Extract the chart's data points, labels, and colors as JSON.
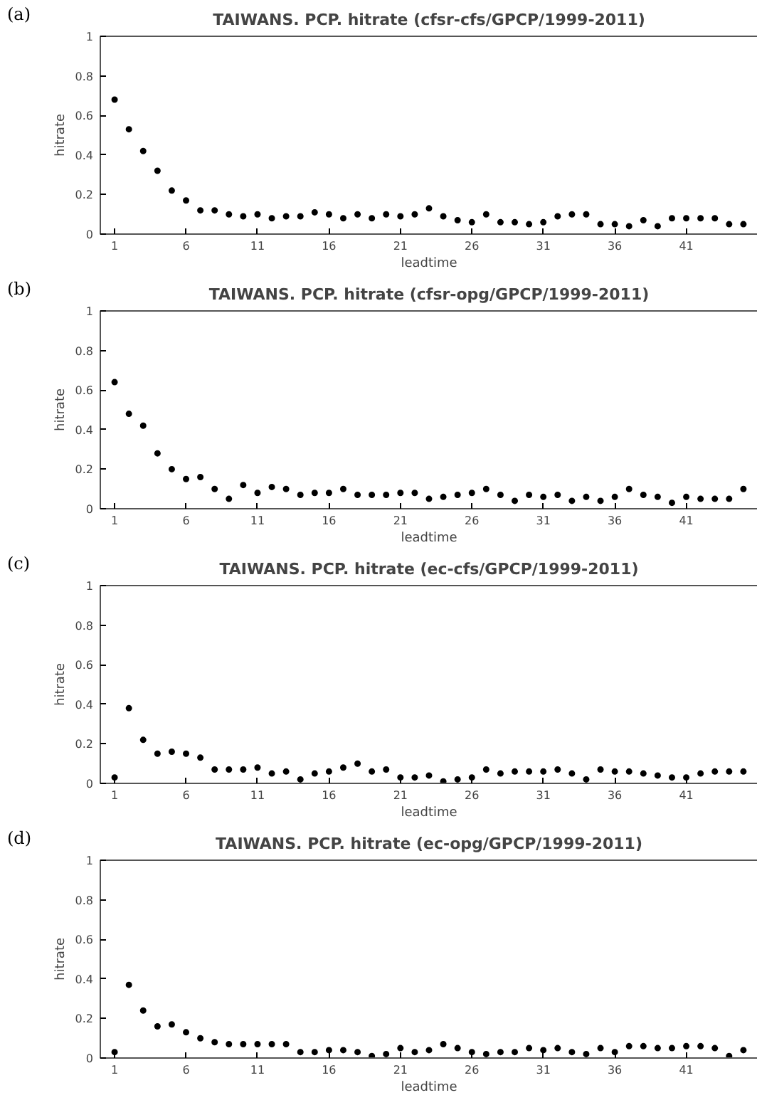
{
  "chart_data": [
    {
      "type": "scatter",
      "title": "TAIWANS. PCP. hitrate (cfsr-cfs/GPCP/1999-2011)",
      "xlabel": "leadtime",
      "ylabel": "hitrate",
      "annotations": [
        "(a)"
      ],
      "marker": "circle",
      "grid": false,
      "xlim": [
        0,
        46
      ],
      "ylim": [
        0,
        1
      ],
      "xticks": [
        1,
        6,
        11,
        16,
        21,
        26,
        31,
        36,
        41
      ],
      "yticks": [
        0,
        0.2,
        0.4,
        0.6,
        0.8,
        1
      ],
      "x": [
        1,
        2,
        3,
        4,
        5,
        6,
        7,
        8,
        9,
        10,
        11,
        12,
        13,
        14,
        15,
        16,
        17,
        18,
        19,
        20,
        21,
        22,
        23,
        24,
        25,
        26,
        27,
        28,
        29,
        30,
        31,
        32,
        33,
        34,
        35,
        36,
        37,
        38,
        39,
        40,
        41,
        42,
        43,
        44,
        45
      ],
      "series": [
        {
          "color": "#000000",
          "values": [
            0.68,
            0.53,
            0.42,
            0.32,
            0.22,
            0.17,
            0.12,
            0.12,
            0.1,
            0.09,
            0.1,
            0.08,
            0.09,
            0.09,
            0.11,
            0.1,
            0.08,
            0.1,
            0.08,
            0.1,
            0.09,
            0.1,
            0.13,
            0.09,
            0.07,
            0.06,
            0.1,
            0.06,
            0.06,
            0.05,
            0.06,
            0.09,
            0.1,
            0.1,
            0.05,
            0.05,
            0.04,
            0.07,
            0.04,
            0.08,
            0.08,
            0.08,
            0.08,
            0.05,
            0.05
          ]
        }
      ]
    },
    {
      "type": "scatter",
      "title": "TAIWANS. PCP. hitrate (cfsr-opg/GPCP/1999-2011)",
      "xlabel": "leadtime",
      "ylabel": "hitrate",
      "annotations": [
        "(b)"
      ],
      "marker": "circle",
      "grid": false,
      "xlim": [
        0,
        46
      ],
      "ylim": [
        0,
        1
      ],
      "xticks": [
        1,
        6,
        11,
        16,
        21,
        26,
        31,
        36,
        41
      ],
      "yticks": [
        0,
        0.2,
        0.4,
        0.6,
        0.8,
        1
      ],
      "x": [
        1,
        2,
        3,
        4,
        5,
        6,
        7,
        8,
        9,
        10,
        11,
        12,
        13,
        14,
        15,
        16,
        17,
        18,
        19,
        20,
        21,
        22,
        23,
        24,
        25,
        26,
        27,
        28,
        29,
        30,
        31,
        32,
        33,
        34,
        35,
        36,
        37,
        38,
        39,
        40,
        41,
        42,
        43,
        44,
        45
      ],
      "series": [
        {
          "color": "#000000",
          "values": [
            0.64,
            0.48,
            0.42,
            0.28,
            0.2,
            0.15,
            0.16,
            0.1,
            0.05,
            0.12,
            0.08,
            0.11,
            0.1,
            0.07,
            0.08,
            0.08,
            0.1,
            0.07,
            0.07,
            0.07,
            0.08,
            0.08,
            0.05,
            0.06,
            0.07,
            0.08,
            0.1,
            0.07,
            0.04,
            0.07,
            0.06,
            0.07,
            0.04,
            0.06,
            0.04,
            0.06,
            0.1,
            0.07,
            0.06,
            0.03,
            0.06,
            0.05,
            0.05,
            0.05,
            0.1
          ]
        }
      ]
    },
    {
      "type": "scatter",
      "title": "TAIWANS. PCP. hitrate (ec-cfs/GPCP/1999-2011)",
      "xlabel": "leadtime",
      "ylabel": "hitrate",
      "annotations": [
        "(c)"
      ],
      "marker": "circle",
      "grid": false,
      "xlim": [
        0,
        46
      ],
      "ylim": [
        0,
        1
      ],
      "xticks": [
        1,
        6,
        11,
        16,
        21,
        26,
        31,
        36,
        41
      ],
      "yticks": [
        0,
        0.2,
        0.4,
        0.6,
        0.8,
        1
      ],
      "x": [
        1,
        2,
        3,
        4,
        5,
        6,
        7,
        8,
        9,
        10,
        11,
        12,
        13,
        14,
        15,
        16,
        17,
        18,
        19,
        20,
        21,
        22,
        23,
        24,
        25,
        26,
        27,
        28,
        29,
        30,
        31,
        32,
        33,
        34,
        35,
        36,
        37,
        38,
        39,
        40,
        41,
        42,
        43,
        44,
        45
      ],
      "series": [
        {
          "color": "#000000",
          "values": [
            0.03,
            0.38,
            0.22,
            0.15,
            0.16,
            0.15,
            0.13,
            0.07,
            0.07,
            0.07,
            0.08,
            0.05,
            0.06,
            0.02,
            0.05,
            0.06,
            0.08,
            0.1,
            0.06,
            0.07,
            0.03,
            0.03,
            0.04,
            0.01,
            0.02,
            0.03,
            0.07,
            0.05,
            0.06,
            0.06,
            0.06,
            0.07,
            0.05,
            0.02,
            0.07,
            0.06,
            0.06,
            0.05,
            0.04,
            0.03,
            0.03,
            0.05,
            0.06,
            0.06,
            0.06
          ]
        }
      ]
    },
    {
      "type": "scatter",
      "title": "TAIWANS. PCP. hitrate (ec-opg/GPCP/1999-2011)",
      "xlabel": "leadtime",
      "ylabel": "hitrate",
      "annotations": [
        "(d)"
      ],
      "marker": "circle",
      "grid": false,
      "xlim": [
        0,
        46
      ],
      "ylim": [
        0,
        1
      ],
      "xticks": [
        1,
        6,
        11,
        16,
        21,
        26,
        31,
        36,
        41
      ],
      "yticks": [
        0,
        0.2,
        0.4,
        0.6,
        0.8,
        1
      ],
      "x": [
        1,
        2,
        3,
        4,
        5,
        6,
        7,
        8,
        9,
        10,
        11,
        12,
        13,
        14,
        15,
        16,
        17,
        18,
        19,
        20,
        21,
        22,
        23,
        24,
        25,
        26,
        27,
        28,
        29,
        30,
        31,
        32,
        33,
        34,
        35,
        36,
        37,
        38,
        39,
        40,
        41,
        42,
        43,
        44,
        45
      ],
      "series": [
        {
          "color": "#000000",
          "values": [
            0.03,
            0.37,
            0.24,
            0.16,
            0.17,
            0.13,
            0.1,
            0.08,
            0.07,
            0.07,
            0.07,
            0.07,
            0.07,
            0.03,
            0.03,
            0.04,
            0.04,
            0.03,
            0.01,
            0.02,
            0.05,
            0.03,
            0.04,
            0.07,
            0.05,
            0.03,
            0.02,
            0.03,
            0.03,
            0.05,
            0.04,
            0.05,
            0.03,
            0.02,
            0.05,
            0.03,
            0.06,
            0.06,
            0.05,
            0.05,
            0.06,
            0.06,
            0.05,
            0.01,
            0.04
          ]
        }
      ]
    }
  ]
}
